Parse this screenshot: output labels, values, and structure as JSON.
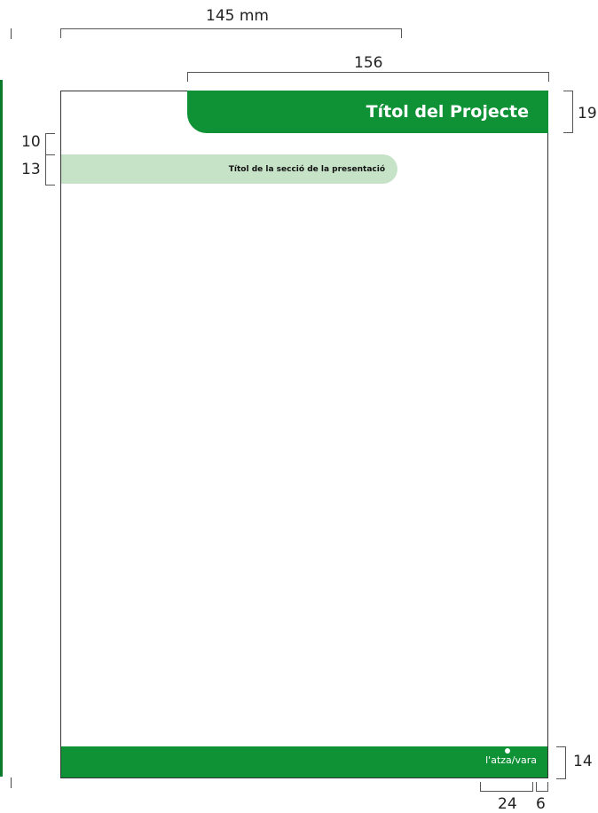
{
  "dimensions": {
    "top_width": "145 mm",
    "header_width": "156",
    "header_height": "19",
    "gap_above_section": "10",
    "section_height": "13",
    "footer_height": "14",
    "logo_width": "24",
    "logo_margin": "6"
  },
  "header": {
    "title": "Títol del Projecte"
  },
  "section": {
    "title": "Títol de la secció de la presentació"
  },
  "footer": {
    "logo_text": "l'atza/vara",
    "logo_subtext": "l'atza/vara"
  },
  "colors": {
    "brand_green": "#0f9136",
    "light_green": "#c6e3c8",
    "edge_green": "#0b7a2a"
  }
}
